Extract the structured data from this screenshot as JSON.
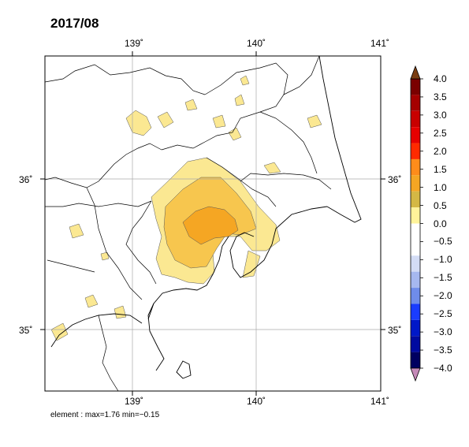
{
  "title": "2017/08",
  "footer": "element : max=1.76 min=−0.15",
  "map": {
    "lon_ticks": [
      "139˚",
      "140˚",
      "141˚"
    ],
    "lat_ticks": [
      "36˚",
      "35˚"
    ],
    "lon_range": [
      138.3,
      141.0
    ],
    "lat_range": [
      34.6,
      36.8
    ]
  },
  "colorbar": {
    "labels": [
      "4.0",
      "3.5",
      "3.0",
      "2.5",
      "2.0",
      "1.5",
      "1.0",
      "0.5",
      "0.0",
      "−0.5",
      "−1.0",
      "−1.5",
      "−2.0",
      "−2.5",
      "−3.0",
      "−3.5",
      "−4.0"
    ],
    "colors": [
      "#7a0000",
      "#a50000",
      "#c80000",
      "#e60000",
      "#ff2a00",
      "#ff8c1a",
      "#f5a623",
      "#d4b845",
      "#fff39a",
      "#ffffff",
      "#ffffff",
      "#d3dcf5",
      "#a6b8ef",
      "#6f8cea",
      "#1a3cff",
      "#0018c8",
      "#000aa0",
      "#000060"
    ],
    "top_arrow_color": "#7a3d12",
    "bottom_arrow_color": "#c58ab8"
  },
  "shading_colors": {
    "level_0_5": "#fbe892",
    "level_1_0": "#f7c64e",
    "level_1_5": "#f5a623"
  }
}
